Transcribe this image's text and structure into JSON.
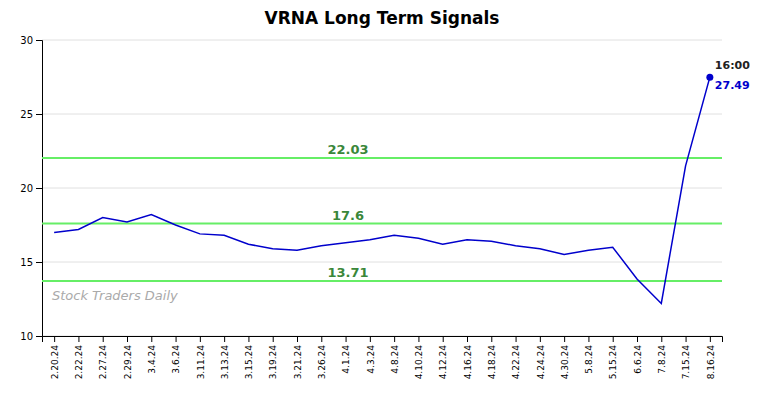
{
  "chart_data": {
    "type": "line",
    "title": "VRNA Long Term Signals",
    "categories": [
      "2.20.24",
      "2.22.24",
      "2.27.24",
      "2.29.24",
      "3.4.24",
      "3.6.24",
      "3.11.24",
      "3.13.24",
      "3.15.24",
      "3.19.24",
      "3.21.24",
      "3.26.24",
      "4.1.24",
      "4.3.24",
      "4.8.24",
      "4.10.24",
      "4.12.24",
      "4.16.24",
      "4.18.24",
      "4.22.24",
      "4.24.24",
      "4.30.24",
      "5.8.24",
      "5.15.24",
      "6.6.24",
      "7.8.24",
      "7.15.24",
      "8.16.24"
    ],
    "values": [
      17.0,
      17.2,
      18.0,
      17.7,
      18.2,
      17.5,
      16.9,
      16.8,
      16.2,
      15.9,
      15.8,
      16.1,
      16.3,
      16.5,
      16.8,
      16.6,
      16.2,
      16.5,
      16.4,
      16.1,
      15.9,
      15.5,
      15.8,
      16.0,
      13.85,
      12.2,
      21.5,
      27.49
    ],
    "value_labels": [
      null,
      null,
      null,
      null,
      null,
      null,
      null,
      null,
      null,
      null,
      null,
      null,
      null,
      null,
      null,
      null,
      null,
      null,
      null,
      null,
      null,
      null,
      null,
      null,
      null,
      null,
      null,
      "27.49"
    ],
    "color": "#0000cc",
    "hlines": [
      {
        "value": 22.03,
        "label": "22.03",
        "color": "#66ee66"
      },
      {
        "value": 17.6,
        "label": "17.6",
        "color": "#66ee66"
      },
      {
        "value": 13.71,
        "label": "13.71",
        "color": "#66ee66"
      }
    ],
    "annotations": [
      {
        "text": "16:00",
        "x": "8.16.24",
        "y": 27.49
      },
      {
        "text": "Stock Traders Daily"
      }
    ],
    "ylim": [
      10,
      30
    ],
    "yticks": [
      10,
      15,
      20,
      25,
      30
    ],
    "grid": true
  }
}
